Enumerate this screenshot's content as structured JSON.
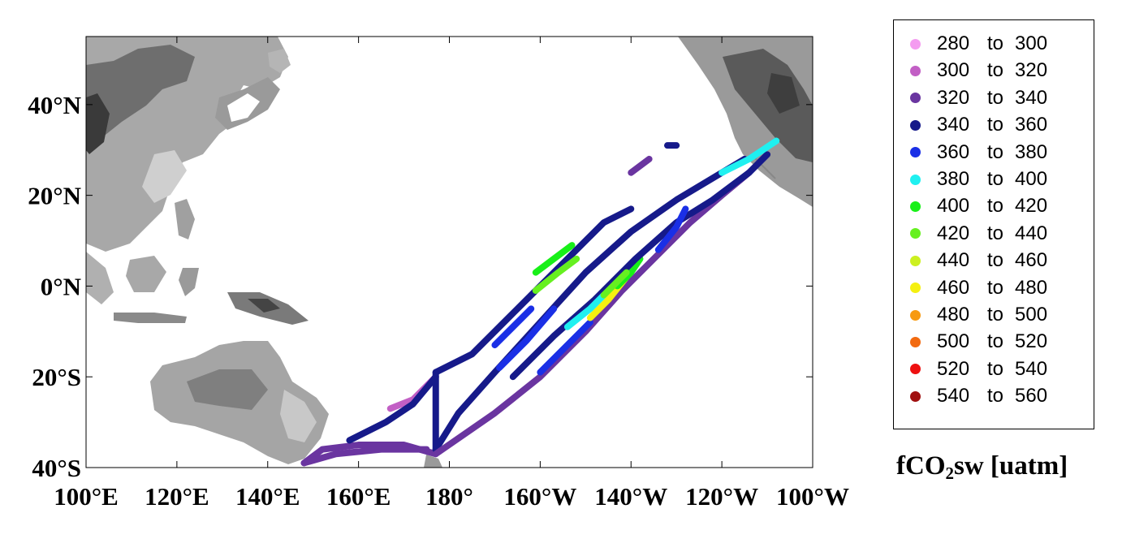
{
  "map": {
    "x_ticks": [
      "100°E",
      "120°E",
      "140°E",
      "160°E",
      "180°",
      "160°W",
      "140°W",
      "120°W",
      "100°W"
    ],
    "y_ticks": [
      "40°N",
      "20°N",
      "0°N",
      "20°S",
      "40°S"
    ],
    "lon_range": [
      100,
      260
    ],
    "lat_range": [
      -40,
      55
    ]
  },
  "legend": {
    "variable_main": "fCO",
    "variable_sub": "2",
    "variable_rest": "sw [uatm]",
    "connector": "to",
    "bins": [
      {
        "from": "280",
        "to": "300",
        "color": "#f49cf0"
      },
      {
        "from": "300",
        "to": "320",
        "color": "#c25fc5"
      },
      {
        "from": "320",
        "to": "340",
        "color": "#6a35a0"
      },
      {
        "from": "340",
        "to": "360",
        "color": "#161a8a"
      },
      {
        "from": "360",
        "to": "380",
        "color": "#1a2fe6"
      },
      {
        "from": "380",
        "to": "400",
        "color": "#1ff0f0"
      },
      {
        "from": "400",
        "to": "420",
        "color": "#18f018"
      },
      {
        "from": "420",
        "to": "440",
        "color": "#66f020"
      },
      {
        "from": "440",
        "to": "460",
        "color": "#ccf020"
      },
      {
        "from": "460",
        "to": "480",
        "color": "#f5f010"
      },
      {
        "from": "480",
        "to": "500",
        "color": "#f79a10"
      },
      {
        "from": "500",
        "to": "520",
        "color": "#f26a10"
      },
      {
        "from": "520",
        "to": "540",
        "color": "#ee1010"
      },
      {
        "from": "540",
        "to": "560",
        "color": "#a01010"
      }
    ]
  },
  "tracks": [
    {
      "name": "west-route-upper",
      "color": "#6a35a0",
      "points": [
        [
          148,
          -39
        ],
        [
          152,
          -36
        ],
        [
          160,
          -35
        ],
        [
          170,
          -35
        ],
        [
          177,
          -37
        ]
      ]
    },
    {
      "name": "west-route-lower",
      "color": "#6a35a0",
      "points": [
        [
          148,
          -39
        ],
        [
          155,
          -37
        ],
        [
          165,
          -36
        ],
        [
          175,
          -36
        ]
      ]
    },
    {
      "name": "west-route-spur",
      "color": "#c25fc5",
      "points": [
        [
          167,
          -27
        ],
        [
          172,
          -25
        ],
        [
          177,
          -20
        ]
      ]
    },
    {
      "name": "west-route-spur-2",
      "color": "#161a8a",
      "points": [
        [
          158,
          -34
        ],
        [
          166,
          -30
        ],
        [
          172,
          -26
        ],
        [
          177,
          -20
        ]
      ]
    },
    {
      "name": "central-meridian",
      "color": "#161a8a",
      "points": [
        [
          177,
          -19
        ],
        [
          177,
          -36
        ]
      ]
    },
    {
      "name": "track-a",
      "color": "#161a8a",
      "points": [
        [
          177,
          -36
        ],
        [
          182,
          -28
        ],
        [
          190,
          -19
        ],
        [
          200,
          -8
        ],
        [
          210,
          3
        ],
        [
          220,
          12
        ],
        [
          230,
          19
        ],
        [
          240,
          25
        ],
        [
          245,
          28
        ]
      ]
    },
    {
      "name": "track-a-blue",
      "color": "#1a2fe6",
      "points": [
        [
          191,
          -18
        ],
        [
          197,
          -12
        ],
        [
          203,
          -5
        ]
      ]
    },
    {
      "name": "track-b",
      "color": "#161a8a",
      "points": [
        [
          177,
          -19
        ],
        [
          185,
          -15
        ],
        [
          192,
          -8
        ],
        [
          199,
          -1
        ],
        [
          207,
          7
        ],
        [
          214,
          14
        ],
        [
          220,
          17
        ]
      ]
    },
    {
      "name": "track-b-green",
      "color": "#66f020",
      "points": [
        [
          199,
          -1
        ],
        [
          204,
          3
        ],
        [
          208,
          6
        ]
      ]
    },
    {
      "name": "track-c",
      "color": "#6a35a0",
      "points": [
        [
          177,
          -37
        ],
        [
          190,
          -28
        ],
        [
          200,
          -20
        ],
        [
          210,
          -10
        ],
        [
          218,
          -1
        ],
        [
          226,
          7
        ],
        [
          233,
          14
        ],
        [
          240,
          20
        ],
        [
          246,
          25
        ]
      ]
    },
    {
      "name": "track-c-blue",
      "color": "#1a2fe6",
      "points": [
        [
          200,
          -19
        ],
        [
          206,
          -13
        ],
        [
          211,
          -8
        ]
      ]
    },
    {
      "name": "track-c-yellow",
      "color": "#f5f010",
      "points": [
        [
          211,
          -7
        ],
        [
          215,
          -3
        ],
        [
          219,
          2
        ]
      ]
    },
    {
      "name": "track-c-green",
      "color": "#18f018",
      "points": [
        [
          217,
          0
        ],
        [
          220,
          3
        ],
        [
          222,
          6
        ]
      ]
    },
    {
      "name": "track-d",
      "color": "#161a8a",
      "points": [
        [
          194,
          -20
        ],
        [
          203,
          -11
        ],
        [
          212,
          -3
        ],
        [
          221,
          6
        ],
        [
          230,
          14
        ],
        [
          238,
          19
        ],
        [
          246,
          25
        ],
        [
          250,
          29
        ]
      ]
    },
    {
      "name": "track-d-cyan",
      "color": "#1ff0f0",
      "points": [
        [
          206,
          -9
        ],
        [
          211,
          -5
        ],
        [
          214,
          -2
        ]
      ]
    },
    {
      "name": "track-d-green",
      "color": "#66f020",
      "points": [
        [
          214,
          -2
        ],
        [
          217,
          1
        ],
        [
          219,
          3
        ]
      ]
    },
    {
      "name": "track-e-cyan",
      "color": "#1ff0f0",
      "points": [
        [
          240,
          25
        ],
        [
          246,
          28
        ],
        [
          252,
          32
        ]
      ]
    },
    {
      "name": "track-f",
      "color": "#6a35a0",
      "points": [
        [
          220,
          25
        ],
        [
          224,
          28
        ]
      ]
    },
    {
      "name": "track-g",
      "color": "#161a8a",
      "points": [
        [
          228,
          31
        ],
        [
          230,
          31
        ]
      ]
    },
    {
      "name": "track-h",
      "color": "#1a2fe6",
      "points": [
        [
          226,
          8
        ],
        [
          230,
          13
        ],
        [
          232,
          17
        ]
      ]
    },
    {
      "name": "track-i-green",
      "color": "#18f018",
      "points": [
        [
          199,
          3
        ],
        [
          203,
          6
        ],
        [
          207,
          9
        ]
      ]
    },
    {
      "name": "track-j-blue",
      "color": "#1a2fe6",
      "points": [
        [
          190,
          -13
        ],
        [
          195,
          -8
        ],
        [
          198,
          -5
        ]
      ]
    }
  ]
}
